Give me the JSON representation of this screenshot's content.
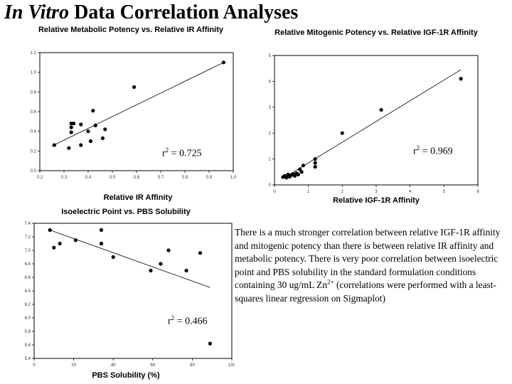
{
  "slide": {
    "title_italic": "In Vitro",
    "title_rest": " Data Correlation Analyses",
    "body_before": "There is a much stronger correlation between relative IGF-1R affinity and mitogenic potency than there is between relative IR affinity and metabolic potency. There is very poor correlation between isoelectric point and PBS solubility in the standard formulation conditions containing 30 ug/mL Zn",
    "body_sup": "2+",
    "body_after": " (correlations were performed with a least-squares linear regression on Sigmaplot)"
  },
  "chart_data": [
    {
      "type": "scatter",
      "title": "Relative Metabolic Potency vs. Relative IR Affinity",
      "xlabel": "Relative IR Affinity",
      "ylabel": "",
      "xlim": [
        0.2,
        1.0
      ],
      "ylim": [
        0.0,
        1.2
      ],
      "xticks": [
        0.2,
        0.3,
        0.4,
        0.5,
        0.6,
        0.7,
        0.8,
        0.9,
        1.0
      ],
      "xtick_labels": [
        "0.2",
        "0.3",
        "0.4",
        "0.5",
        "0.6",
        "0.7",
        "0.8",
        "0.9",
        "1.0"
      ],
      "yticks": [
        0.0,
        0.2,
        0.4,
        0.6,
        0.8,
        1.0,
        1.2
      ],
      "ytick_labels": [
        "0.0",
        "0.2",
        "0.4",
        "0.6",
        "0.8",
        "1.0",
        "1.2"
      ],
      "grid": false,
      "r2_label": "r",
      "r2_sup": "2",
      "r2_value": " = 0.725",
      "points": [
        [
          0.26,
          0.26
        ],
        [
          0.32,
          0.23
        ],
        [
          0.33,
          0.39
        ],
        [
          0.33,
          0.44
        ],
        [
          0.33,
          0.48
        ],
        [
          0.34,
          0.48
        ],
        [
          0.37,
          0.26
        ],
        [
          0.37,
          0.47
        ],
        [
          0.4,
          0.4
        ],
        [
          0.41,
          0.3
        ],
        [
          0.42,
          0.61
        ],
        [
          0.43,
          0.46
        ],
        [
          0.46,
          0.33
        ],
        [
          0.47,
          0.42
        ],
        [
          0.59,
          0.85
        ],
        [
          0.96,
          1.1
        ]
      ],
      "fit": [
        [
          0.25,
          0.25
        ],
        [
          0.96,
          1.1
        ]
      ]
    },
    {
      "type": "scatter",
      "title": "Relative Mitogenic Potency vs. Relative IGF-1R Affinity",
      "xlabel": "Relative IGF-1R Affinity",
      "ylabel": "",
      "xlim": [
        0,
        6
      ],
      "ylim": [
        0,
        5
      ],
      "xticks": [
        0,
        1,
        2,
        3,
        4,
        5,
        6
      ],
      "xtick_labels": [
        "0",
        "1",
        "2",
        "3",
        "4",
        "5",
        "6"
      ],
      "yticks": [
        0,
        1,
        2,
        3,
        4,
        5
      ],
      "ytick_labels": [
        "0",
        "1",
        "2",
        "3",
        "4",
        "5"
      ],
      "grid": false,
      "r2_label": "r",
      "r2_sup": "2",
      "r2_value": " = 0.969",
      "points": [
        [
          0.25,
          0.3
        ],
        [
          0.3,
          0.35
        ],
        [
          0.35,
          0.28
        ],
        [
          0.4,
          0.4
        ],
        [
          0.45,
          0.32
        ],
        [
          0.5,
          0.38
        ],
        [
          0.55,
          0.42
        ],
        [
          0.6,
          0.35
        ],
        [
          0.65,
          0.45
        ],
        [
          0.7,
          0.4
        ],
        [
          0.75,
          0.6
        ],
        [
          0.8,
          0.5
        ],
        [
          0.85,
          0.75
        ],
        [
          1.2,
          0.85
        ],
        [
          1.2,
          1.0
        ],
        [
          1.2,
          0.7
        ],
        [
          2.0,
          2.0
        ],
        [
          3.15,
          2.9
        ],
        [
          5.5,
          4.1
        ]
      ],
      "fit": [
        [
          0.25,
          0.25
        ],
        [
          5.5,
          4.45
        ]
      ]
    },
    {
      "type": "scatter",
      "title": "Isoelectric Point vs. PBS Solubility",
      "xlabel": "PBS Solubility (%)",
      "ylabel": "",
      "xlim": [
        0,
        100
      ],
      "ylim": [
        5.4,
        7.4
      ],
      "xticks": [
        0,
        20,
        40,
        60,
        80,
        100
      ],
      "xtick_labels": [
        "0",
        "20",
        "40",
        "60",
        "80",
        "100"
      ],
      "yticks": [
        5.4,
        5.6,
        5.8,
        6.0,
        6.2,
        6.4,
        6.6,
        6.8,
        7.0,
        7.2,
        7.4
      ],
      "ytick_labels": [
        "5.4",
        "5.6",
        "5.8",
        "6.0",
        "6.2",
        "6.4",
        "6.6",
        "6.8",
        "7.0",
        "7.2",
        "7.4"
      ],
      "grid": false,
      "r2_label": "r",
      "r2_sup": "2",
      "r2_value": " = 0.466",
      "points": [
        [
          8,
          7.3
        ],
        [
          10,
          7.04
        ],
        [
          13,
          7.1
        ],
        [
          21,
          7.15
        ],
        [
          34,
          7.3
        ],
        [
          34,
          7.1
        ],
        [
          40,
          6.9
        ],
        [
          59,
          6.7
        ],
        [
          64,
          6.8
        ],
        [
          68,
          7.0
        ],
        [
          77,
          6.7
        ],
        [
          84,
          6.96
        ],
        [
          89,
          5.62
        ]
      ],
      "fit": [
        [
          8,
          7.3
        ],
        [
          89,
          6.45
        ]
      ]
    }
  ]
}
